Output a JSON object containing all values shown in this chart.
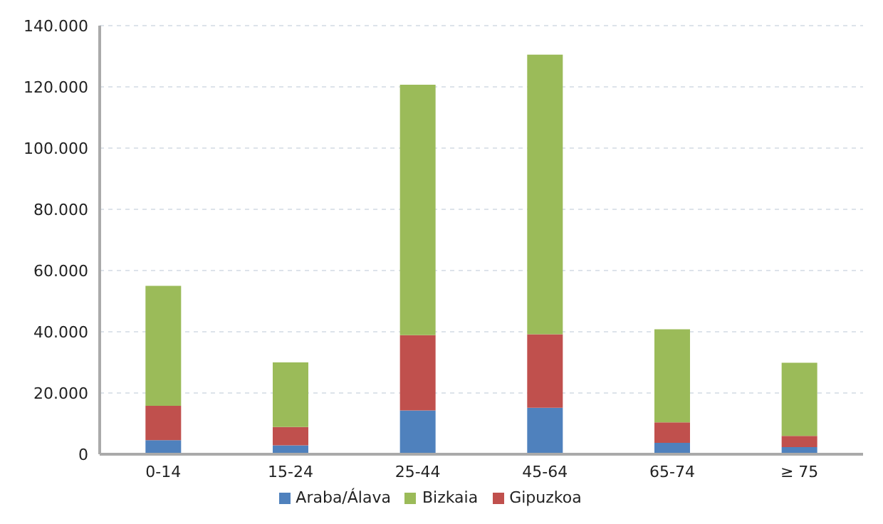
{
  "chart_data": {
    "type": "bar",
    "stacked": true,
    "categories": [
      "0-14",
      "15-24",
      "25-44",
      "45-64",
      "65-74",
      "≥ 75"
    ],
    "series": [
      {
        "name": "Araba/Álava",
        "color": "#4f81bd",
        "values": [
          4600,
          2900,
          14300,
          15200,
          3700,
          2300
        ]
      },
      {
        "name": "Gipuzkoa",
        "color": "#c0504d",
        "values": [
          11200,
          6000,
          24600,
          24000,
          6700,
          3700
        ]
      },
      {
        "name": "Bizkaia",
        "color": "#9bbb59",
        "values": [
          39200,
          21100,
          81800,
          91300,
          30400,
          23900
        ]
      }
    ],
    "ylim": [
      0,
      140000
    ],
    "yticks": [
      {
        "value": 0,
        "label": "0"
      },
      {
        "value": 20000,
        "label": "20.000"
      },
      {
        "value": 40000,
        "label": "40.000"
      },
      {
        "value": 60000,
        "label": "60.000"
      },
      {
        "value": 80000,
        "label": "80.000"
      },
      {
        "value": 100000,
        "label": "100.000"
      },
      {
        "value": 120000,
        "label": "120.000"
      },
      {
        "value": 140000,
        "label": "140.000"
      }
    ],
    "grid": "y",
    "legend": "bottom"
  }
}
